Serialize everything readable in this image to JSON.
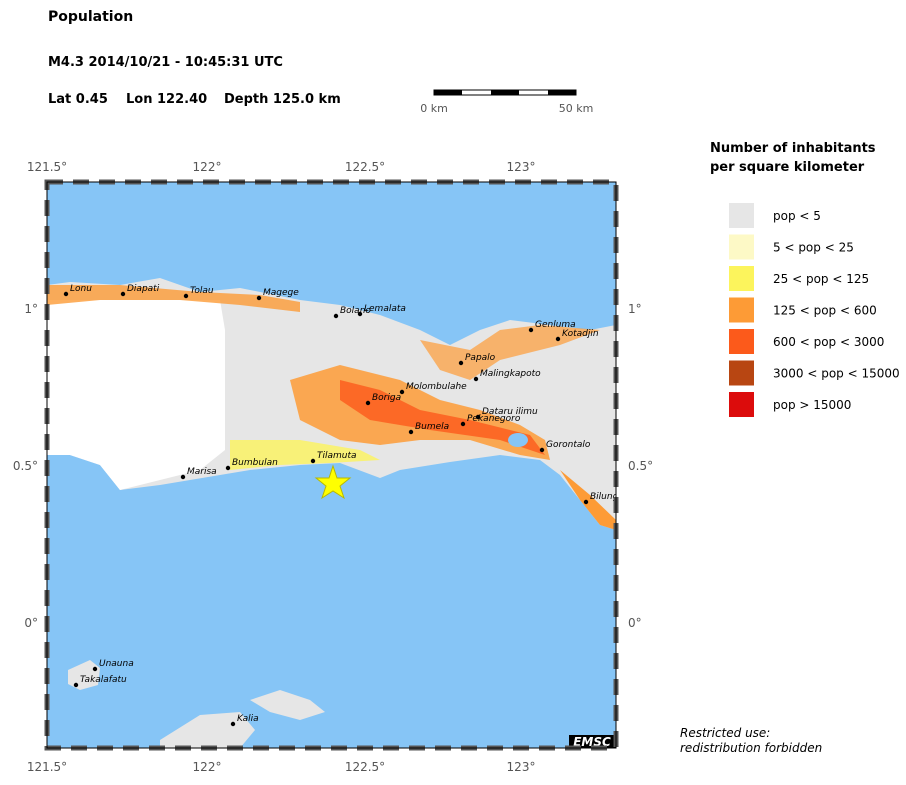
{
  "header": {
    "title": "Population",
    "event": "M4.3  2014/10/21 - 10:45:31 UTC",
    "lat": "Lat  0.45",
    "lon": "Lon 122.40",
    "depth": "Depth 125.0 km"
  },
  "scale_bar": {
    "start": "0 km",
    "end": "50 km"
  },
  "map": {
    "lon_labels": [
      "121.5°",
      "122°",
      "122.5°",
      "123°"
    ],
    "lat_labels": [
      "1°",
      "0.5°",
      "0°"
    ],
    "credit": "EMSC",
    "cities": [
      "Lonu",
      "Diapati",
      "Tolau",
      "Magege",
      "Bolano",
      "Lemalata",
      "Papalo",
      "Malingkapoto",
      "Molombulahe",
      "Boriga",
      "Bumela",
      "Dataru ilimu",
      "Pekanegoro",
      "Genluma",
      "Kotadjin",
      "Gorontalo",
      "Marisa",
      "Bumbulan",
      "Tilamuta",
      "Bilungala",
      "Unauna",
      "Takalafatu",
      "Kalia"
    ]
  },
  "legend": {
    "title": [
      "Number of inhabitants",
      "per square kilometer"
    ],
    "items": [
      {
        "label": "pop < 5",
        "color": "#e6e6e6"
      },
      {
        "label": "5 < pop < 25",
        "color": "#fdf9c6"
      },
      {
        "label": "25 < pop < 125",
        "color": "#fcf45c"
      },
      {
        "label": "125 < pop < 600",
        "color": "#fd9b36"
      },
      {
        "label": "600 < pop < 3000",
        "color": "#fc5a1b"
      },
      {
        "label": "3000 < pop < 15000",
        "color": "#b84612"
      },
      {
        "label": "pop > 15000",
        "color": "#dc0c0c"
      }
    ]
  },
  "notice": [
    "Restricted use:",
    "redistribution forbidden"
  ]
}
